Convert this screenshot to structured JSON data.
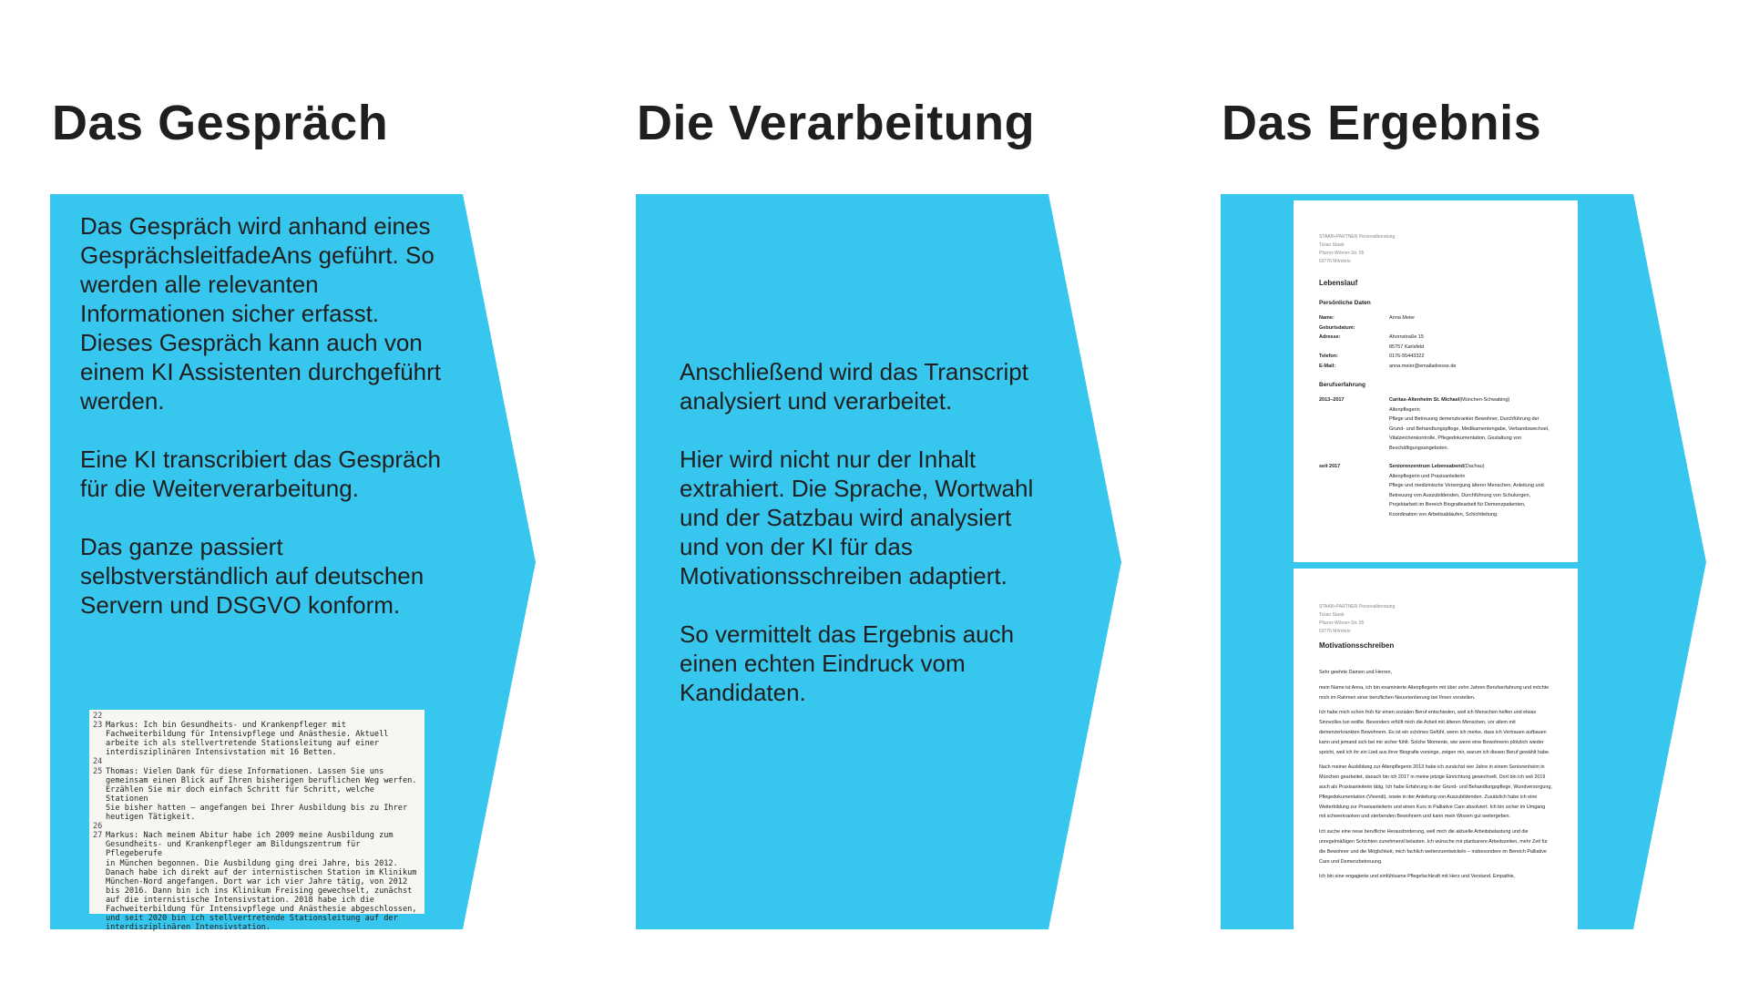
{
  "colors": {
    "panel": "#37c6ee",
    "text": "#1f1f1f",
    "transcript_bg": "#f7f6f3"
  },
  "columns": [
    {
      "title": "Das Gespräch",
      "paragraphs": [
        "Das Gespräch wird anhand eines GesprächsleitfadeAns geführt. So werden alle relevanten Informationen sicher erfasst. Dieses Gespräch kann auch von einem KI Assistenten durchgeführt werden.",
        "Eine KI transcribiert das Gespräch für die Weiterverarbeitung.",
        "Das ganze passiert selbstverständlich auf deutschen Servern und DSGVO konform."
      ]
    },
    {
      "title": "Die Verarbeitung",
      "paragraphs": [
        "Anschließend wird das Transcript analysiert und verarbeitet.",
        "Hier wird nicht nur der Inhalt extrahiert. Die Sprache, Wortwahl und der Satzbau wird analysiert und von der KI für das Motivationsschreiben adaptiert.",
        "So vermittelt das Ergebnis auch einen echten Eindruck vom Kandidaten."
      ]
    },
    {
      "title": "Das Ergebnis"
    }
  ],
  "transcript": [
    {
      "n": "22",
      "t": ""
    },
    {
      "n": "23",
      "t": "Markus: Ich bin Gesundheits- und Krankenpfleger mit\nFachweiterbildung für Intensivpflege und Anästhesie. Aktuell\narbeite ich als stellvertretende Stationsleitung auf einer\ninterdisziplinären Intensivstation mit 16 Betten."
    },
    {
      "n": "24",
      "t": ""
    },
    {
      "n": "25",
      "t": "Thomas: Vielen Dank für diese Informationen. Lassen Sie uns\ngemeinsam einen Blick auf Ihren bisherigen beruflichen Weg werfen.\nErzählen Sie mir doch einfach Schritt für Schritt, welche Stationen\nSie bisher hatten – angefangen bei Ihrer Ausbildung bis zu Ihrer\nheutigen Tätigkeit."
    },
    {
      "n": "26",
      "t": ""
    },
    {
      "n": "27",
      "t": "Markus: Nach meinem Abitur habe ich 2009 meine Ausbildung zum\nGesundheits- und Krankenpfleger am Bildungszentrum für Pflegeberufe\nin München begonnen. Die Ausbildung ging drei Jahre, bis 2012.\nDanach habe ich direkt auf der internistischen Station im Klinikum\nMünchen-Nord angefangen. Dort war ich vier Jahre tätig, von 2012\nbis 2016. Dann bin ich ins Klinikum Freising gewechselt, zunächst\nauf die internistische Intensivstation. 2018 habe ich die\nFachweiterbildung für Intensivpflege und Anästhesie abgeschlossen,\nund seit 2020 bin ich stellvertretende Stationsleitung auf der\ninterdisziplinären Intensivstation."
    }
  ],
  "letterhead": [
    "STAAB+PARTNER Personalberatung",
    "Tizian Staab",
    "Pfarrer-Wörner-Str. 55",
    "63776 Mömbris"
  ],
  "cv": {
    "title": "Lebenslauf",
    "personal_title": "Persönliche Daten",
    "personal": [
      {
        "k": "Name:",
        "v": "Anna Meier"
      },
      {
        "k": "Geburtsdatum:",
        "v": ""
      },
      {
        "k": "Adresse:",
        "v": "Ahornstraße 15"
      },
      {
        "k": "",
        "v": "85757 Karlsfeld"
      },
      {
        "k": "Telefon:",
        "v": "0176-55443322"
      },
      {
        "k": "E-Mail:",
        "v": "anna.meier@emailadresse.de"
      }
    ],
    "experience_title": "Berufserfahrung",
    "experience": [
      {
        "period": "2013–2017",
        "employer": "Caritas-Altenheim St. Michael",
        "place": "(München-Schwabing)",
        "role": "Altenpflegerin",
        "desc": "Pflege und Betreuung demenzkranker Bewohner, Durchführung der Grund- und Behandlungspflege, Medikamentengabe, Verbandswechsel, Vitalzeichenkontrolle, Pflegedokumentation, Gestaltung von Beschäftigungsangeboten."
      },
      {
        "period": "seit 2017",
        "employer": "Seniorenzentrum Lebensabend",
        "place": "(Dachau)",
        "role": "Altenpflegerin und Praxisanleiterin",
        "desc": "Pflege und medizinische Versorgung älterer Menschen, Anleitung und Betreuung von Auszubildenden, Durchführung von Schulungen, Projektarbeit im Bereich Biografiearbeit für Demenzpatienten, Koordination von Arbeitsabläufen, Schichtleitung."
      }
    ]
  },
  "letter": {
    "title": "Motivationsschreiben",
    "paragraphs": [
      "Sehr geehrte Damen und Herren,",
      "mein Name ist Anna, ich bin examinierte Altenpflegerin mit über zehn Jahren Berufserfahrung und möchte mich im Rahmen einer beruflichen Neuorientierung bei Ihnen vorstellen.",
      "Ich habe mich schon früh für einen sozialen Beruf entschieden, weil ich Menschen helfen und etwas Sinnvolles tun wollte. Besonders erfüllt mich die Arbeit mit älteren Menschen, vor allem mit demenzerkrankten Bewohnern. Es ist ein schönes Gefühl, wenn ich merke, dass ich Vertrauen aufbauen kann und jemand sich bei mir sicher fühlt. Solche Momente, wie wenn eine Bewohnerin plötzlich wieder spricht, weil ich ihr ein Lied aus ihrer Biografie vorsinge, zeigen mir, warum ich diesen Beruf gewählt habe.",
      "Nach meiner Ausbildung zur Altenpflegerin 2013 habe ich zunächst vier Jahre in einem Seniorenheim in München gearbeitet, danach bin ich 2017 in meine jetzige Einrichtung gewechselt. Dort bin ich seit 2019 auch als Praxisanleiterin tätig. Ich habe Erfahrung in der Grund- und Behandlungspflege, Wundversorgung, Pflegedokumentation (Vivendi), sowie in der Anleitung von Auszubildenden. Zusätzlich habe ich eine Weiterbildung zur Praxisanleiterin und einen Kurs in Palliative Care absolviert. Ich bin sicher im Umgang mit schwerkranken und sterbenden Bewohnern und kann mein Wissen gut weitergeben.",
      "Ich suche eine neue berufliche Herausforderung, weil mich die aktuelle Arbeitsbelastung und die unregelmäßigen Schichten zunehmend belasten. Ich wünsche mir planbarere Arbeitszeiten, mehr Zeit für die Bewohner und die Möglichkeit, mich fachlich weiterzuentwickeln – insbesondere im Bereich Palliative Care und Demenzbetreuung.",
      "Ich bin eine engagierte und einfühlsame Pflegefachkraft mit Herz und Verstand. Empathie,"
    ]
  }
}
